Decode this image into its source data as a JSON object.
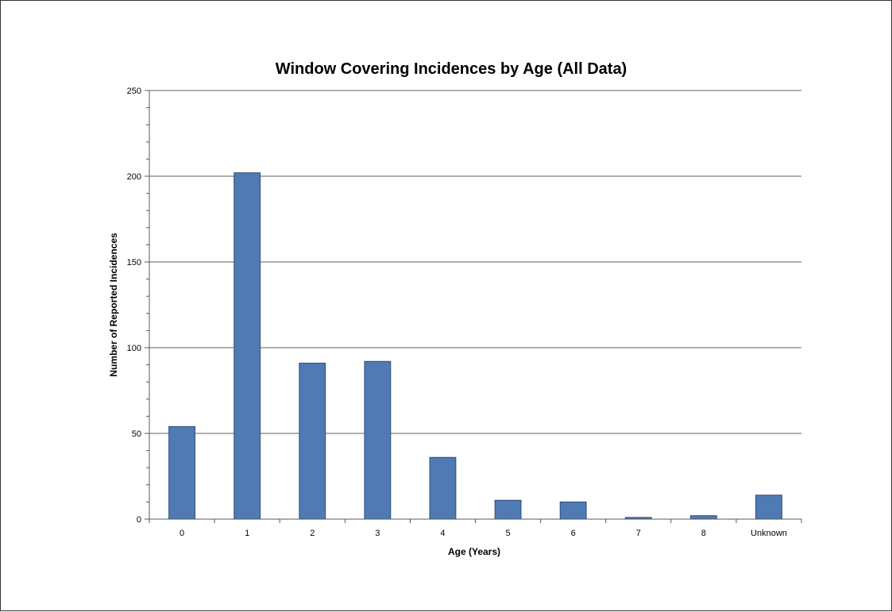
{
  "chart_data": {
    "type": "bar",
    "title": "Window Covering Incidences by Age (All Data)",
    "xlabel": "Age (Years)",
    "ylabel": "Number of Reported Incidences",
    "categories": [
      "0",
      "1",
      "2",
      "3",
      "4",
      "5",
      "6",
      "7",
      "8",
      "Unknown"
    ],
    "values": [
      54,
      202,
      91,
      92,
      36,
      11,
      10,
      1,
      2,
      14
    ],
    "ylim": [
      0,
      250
    ],
    "yticks": [
      0,
      50,
      100,
      150,
      200,
      250
    ],
    "grid": true,
    "legend": "none",
    "colors": {
      "bar": "#4F7AB3",
      "bar_edge": "#2E4E7A",
      "grid": "#7F7F7F",
      "axis": "#595959"
    }
  }
}
